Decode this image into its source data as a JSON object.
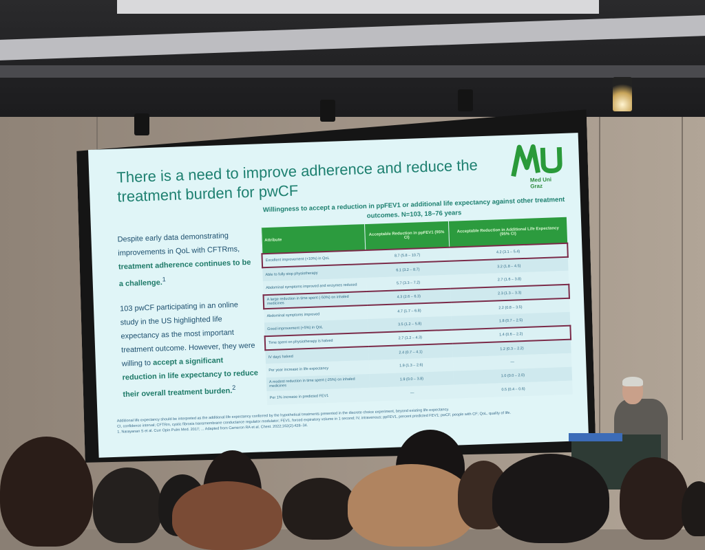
{
  "slide": {
    "title": "There is a need to improve adherence and reduce the treatment burden for pwCF",
    "logo": {
      "text_line1": "Med Uni",
      "text_line2": "Graz",
      "color": "#2a9a3a"
    },
    "left_text": {
      "p1_plain": "Despite early data demonstrating improvements in QoL with CFTRms, ",
      "p1_em": "treatment adherence continues to be a challenge.",
      "p1_sup": "1",
      "p2_plain1": "103 pwCF participating in an online study in the US highlighted life expectancy as the most important treatment outcome. However, they were willing to ",
      "p2_em1": "accept a significant reduction in life expectancy to reduce their overall treatment burden.",
      "p2_sup": "2"
    },
    "caption": "Willingness to accept a reduction in ppFEV1 or additional life expectancy against other treatment outcomes. N=103, 18–76 years",
    "table": {
      "headers": [
        "Attribute",
        "Acceptable Reduction in ppFEV1 (95% CI)",
        "Acceptable Reduction in Additional Life Expectancy (95% CI)"
      ],
      "rows": [
        {
          "attr": "Excellent improvement (+10%) in QoL",
          "fev": "8.7 (5.8 – 10.7)",
          "life": "4.2 (3.1 – 5.4)",
          "highlight": true
        },
        {
          "attr": "Able to fully stop physiotherapy",
          "fev": "6.1 (3.2 – 8.7)",
          "life": "3.2 (1.8 – 4.5)",
          "highlight": false
        },
        {
          "attr": "Abdominal symptoms improved and enzymes reduced",
          "fev": "5.7 (3.3 – 7.2)",
          "life": "2.7 (1.6 – 3.8)",
          "highlight": false
        },
        {
          "attr": "A large reduction in time spent (-50%) on inhaled medicines",
          "fev": "4.3 (2.6 – 6.3)",
          "life": "2.3 (1.3 – 3.3)",
          "highlight": true
        },
        {
          "attr": "Abdominal symptoms improved",
          "fev": "4.7 (1.7 – 6.8)",
          "life": "2.2 (0.8 – 3.5)",
          "highlight": false
        },
        {
          "attr": "Good improvement (+5%) in QoL",
          "fev": "3.5 (1.2 – 5.8)",
          "life": "1.8 (0.7 – 2.5)",
          "highlight": false
        },
        {
          "attr": "Time spent on physiotherapy is halved",
          "fev": "2.7 (1.2 – 4.3)",
          "life": "1.4 (0.6 – 2.2)",
          "highlight": true
        },
        {
          "attr": "IV days halved",
          "fev": "2.4 (0.7 – 4.1)",
          "life": "1.2 (0.3 – 2.2)",
          "highlight": false
        },
        {
          "attr": "Per year increase in life expectancy",
          "fev": "1.9 (1.3 – 2.6)",
          "life": "—",
          "highlight": false
        },
        {
          "attr": "A modest reduction in time spent (-25%) on inhaled medicines",
          "fev": "1.9 (0.0 – 3.8)",
          "life": "1.0 (0.0 – 2.0)",
          "highlight": false
        },
        {
          "attr": "Per 1% increase in predicted FEV1",
          "fev": "—",
          "life": "0.5 (0.4 – 0.6)",
          "highlight": false
        }
      ]
    },
    "footnotes": [
      "Additional life expectancy should be interpreted as the additional life expectancy conferred by the hypothetical treatments presented in the discrete choice experiment, beyond existing life expectancy.",
      "CI, confidence interval; CFTRm, cystic fibrosis transmembrane conductance regulator modulator; FEV1, forced expiratory volume in 1 second; IV, intravenous; ppFEV1, percent predicted FEV1; pwCF, people with CF; QoL, quality of life.",
      "1. Narayanan S et al. Curr Opin Pulm Med. 2017; ... Adapted from Cameron RA et al. Chest. 2022;162(2):428–34."
    ],
    "colors": {
      "background": "#e0f5f7",
      "title": "#1e8070",
      "table_header": "#2c9b3e",
      "highlight_box": "#7a2a48"
    }
  }
}
